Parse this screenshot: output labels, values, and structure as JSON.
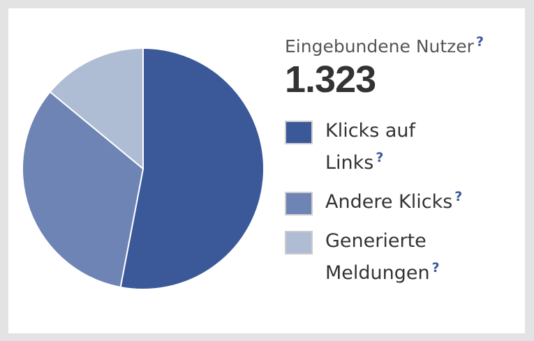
{
  "chart_data": {
    "type": "pie",
    "title": "Eingebundene Nutzer",
    "help": "?",
    "total": "1.323",
    "categories": [
      "Klicks auf Links",
      "Andere Klicks",
      "Generierte Meldungen"
    ],
    "values": [
      53,
      33,
      14
    ],
    "colors": [
      "#3b5998",
      "#6d84b4",
      "#afbdd4"
    ]
  }
}
